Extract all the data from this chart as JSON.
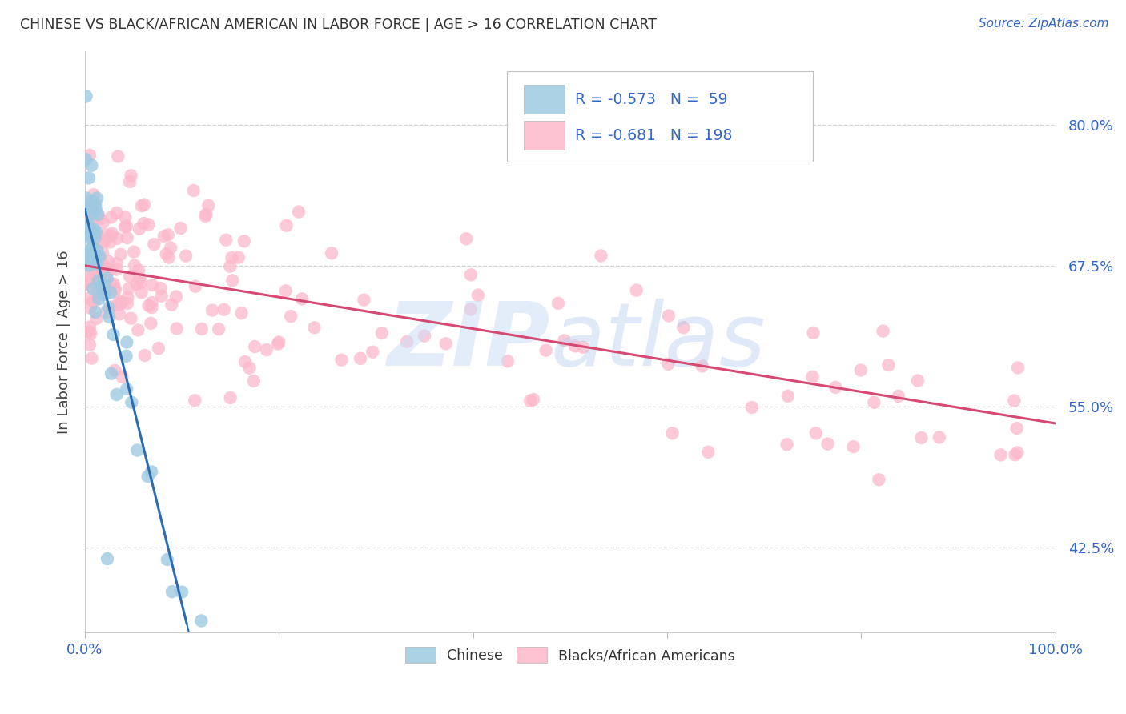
{
  "title": "CHINESE VS BLACK/AFRICAN AMERICAN IN LABOR FORCE | AGE > 16 CORRELATION CHART",
  "source": "Source: ZipAtlas.com",
  "ylabel": "In Labor Force | Age > 16",
  "xlim": [
    0.0,
    1.0
  ],
  "ylim": [
    0.35,
    0.865
  ],
  "yticks": [
    0.425,
    0.55,
    0.675,
    0.8
  ],
  "ytick_labels": [
    "42.5%",
    "55.0%",
    "67.5%",
    "80.0%"
  ],
  "xticks": [
    0.0,
    0.2,
    0.4,
    0.6,
    0.8,
    1.0
  ],
  "xtick_labels": [
    "0.0%",
    "",
    "",
    "",
    "",
    "100.0%"
  ],
  "legend_chinese_R": "-0.573",
  "legend_chinese_N": "59",
  "legend_black_R": "-0.681",
  "legend_black_N": "198",
  "chinese_color": "#9ecae1",
  "black_color": "#fcb8cb",
  "chinese_line_color": "#2b6cb0",
  "black_line_color": "#d44a72",
  "title_color": "#333333",
  "label_color": "#3366cc",
  "background_color": "#ffffff",
  "chinese_line_x0": 0.0,
  "chinese_line_y0": 0.725,
  "chinese_line_slope": -3.5,
  "chinese_line_solid_end": 0.105,
  "chinese_line_dash_end": 0.23,
  "black_line_x0": 0.0,
  "black_line_y0": 0.675,
  "black_line_x1": 1.0,
  "black_line_y1": 0.535
}
